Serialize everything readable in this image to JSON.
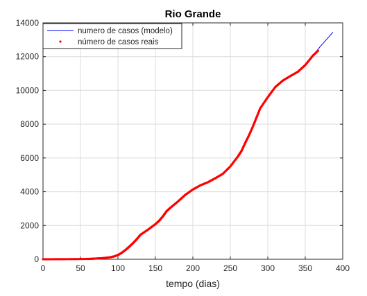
{
  "chart_data": {
    "type": "line",
    "title": "Rio Grande",
    "xlabel": "tempo (dias)",
    "ylabel": "",
    "xlim": [
      0,
      400
    ],
    "ylim": [
      0,
      14000
    ],
    "x_ticks": [
      0,
      50,
      100,
      150,
      200,
      250,
      300,
      350,
      400
    ],
    "y_ticks": [
      0,
      2000,
      4000,
      6000,
      8000,
      10000,
      12000,
      14000
    ],
    "grid": true,
    "legend_position": "top-left",
    "series": [
      {
        "name": "numero de casos (modelo)",
        "style": "line",
        "color": "#0000ff",
        "x": [
          0,
          20,
          40,
          60,
          70,
          80,
          90,
          95,
          100,
          105,
          110,
          115,
          120,
          125,
          130,
          140,
          150,
          155,
          160,
          165,
          170,
          180,
          190,
          200,
          210,
          220,
          230,
          240,
          250,
          260,
          265,
          270,
          275,
          280,
          285,
          290,
          300,
          310,
          320,
          330,
          340,
          350,
          360,
          370,
          380,
          387
        ],
        "y": [
          0,
          5,
          10,
          20,
          40,
          70,
          120,
          170,
          250,
          380,
          550,
          740,
          950,
          1180,
          1450,
          1750,
          2080,
          2280,
          2540,
          2850,
          3050,
          3420,
          3820,
          4130,
          4380,
          4560,
          4800,
          5060,
          5500,
          6080,
          6420,
          6900,
          7350,
          7850,
          8400,
          8950,
          9600,
          10200,
          10580,
          10850,
          11100,
          11500,
          12050,
          12600,
          13100,
          13450
        ]
      },
      {
        "name": "número de casos reais",
        "style": "points",
        "color": "#ff0000",
        "x": [
          0,
          20,
          40,
          60,
          70,
          80,
          90,
          95,
          100,
          105,
          110,
          115,
          120,
          125,
          130,
          140,
          150,
          155,
          160,
          165,
          170,
          180,
          190,
          200,
          210,
          220,
          230,
          240,
          250,
          260,
          265,
          270,
          275,
          280,
          285,
          290,
          300,
          310,
          320,
          330,
          340,
          350,
          360,
          367
        ],
        "y": [
          0,
          5,
          10,
          20,
          40,
          70,
          120,
          170,
          250,
          380,
          550,
          740,
          950,
          1180,
          1450,
          1750,
          2080,
          2280,
          2540,
          2850,
          3050,
          3420,
          3820,
          4130,
          4380,
          4560,
          4800,
          5060,
          5500,
          6080,
          6420,
          6900,
          7350,
          7850,
          8400,
          8950,
          9600,
          10200,
          10580,
          10850,
          11100,
          11500,
          12050,
          12350
        ]
      }
    ]
  }
}
